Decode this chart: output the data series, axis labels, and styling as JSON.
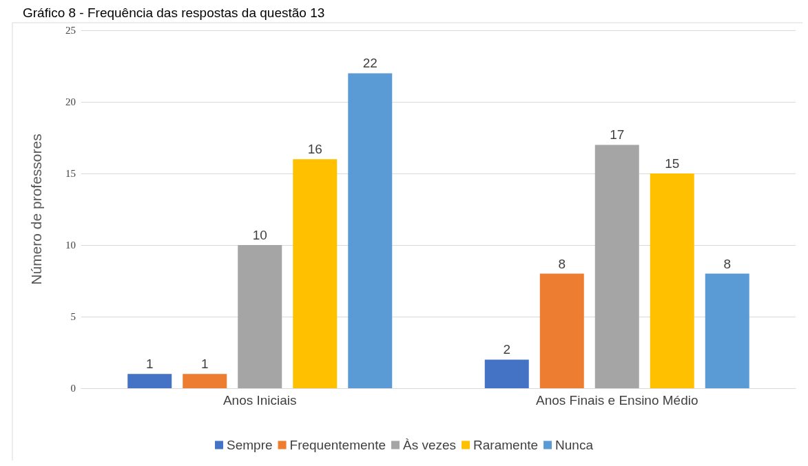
{
  "chart_data": {
    "type": "bar",
    "title": "Gráfico 8 - Frequência das respostas da questão 13",
    "ylabel": "Número de professores",
    "categories": [
      "Anos Iniciais",
      "Anos Finais e Ensino Médio"
    ],
    "series": [
      {
        "name": "Sempre",
        "color": "#4472c4",
        "values": [
          1,
          2
        ]
      },
      {
        "name": "Frequentemente",
        "color": "#ed7d31",
        "values": [
          1,
          8
        ]
      },
      {
        "name": "Às vezes",
        "color": "#a5a5a5",
        "values": [
          10,
          17
        ]
      },
      {
        "name": "Raramente",
        "color": "#ffc000",
        "values": [
          16,
          15
        ]
      },
      {
        "name": "Nunca",
        "color": "#5b9bd5",
        "values": [
          22,
          8
        ]
      }
    ],
    "ylim": [
      0,
      25
    ],
    "yticks": [
      0,
      5,
      10,
      15,
      20,
      25
    ],
    "grid": "y",
    "legend": "bottom",
    "data_labels": true
  }
}
